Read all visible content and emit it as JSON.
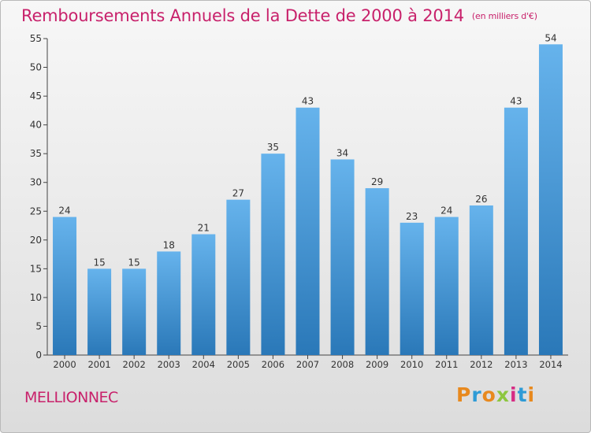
{
  "header": {
    "title": "Remboursements Annuels de la Dette de 2000 à 2014",
    "unit": "(en milliers d'€)"
  },
  "commune": "MELLIONNEC",
  "logo": {
    "text": "Proxiti",
    "letter_colors": [
      "#e8891e",
      "#2e9bd6",
      "#e8891e",
      "#8dc63f",
      "#d62c84",
      "#2e9bd6",
      "#e8891e"
    ]
  },
  "colors": {
    "title": "#c8216b",
    "bar_top": "#66b3ec",
    "bar_bottom": "#2a78b8"
  },
  "chart_data": {
    "type": "bar",
    "title": "Remboursements Annuels de la Dette de 2000 à 2014",
    "categories": [
      "2000",
      "2001",
      "2002",
      "2003",
      "2004",
      "2005",
      "2006",
      "2007",
      "2008",
      "2009",
      "2010",
      "2011",
      "2012",
      "2013",
      "2014"
    ],
    "values": [
      24,
      15,
      15,
      18,
      21,
      27,
      35,
      43,
      34,
      29,
      23,
      24,
      26,
      43,
      54
    ],
    "ylim": [
      0,
      55
    ],
    "yticks": [
      0,
      5,
      10,
      15,
      20,
      25,
      30,
      35,
      40,
      45,
      50,
      55
    ],
    "grid": false,
    "xlabel": "",
    "ylabel": ""
  }
}
